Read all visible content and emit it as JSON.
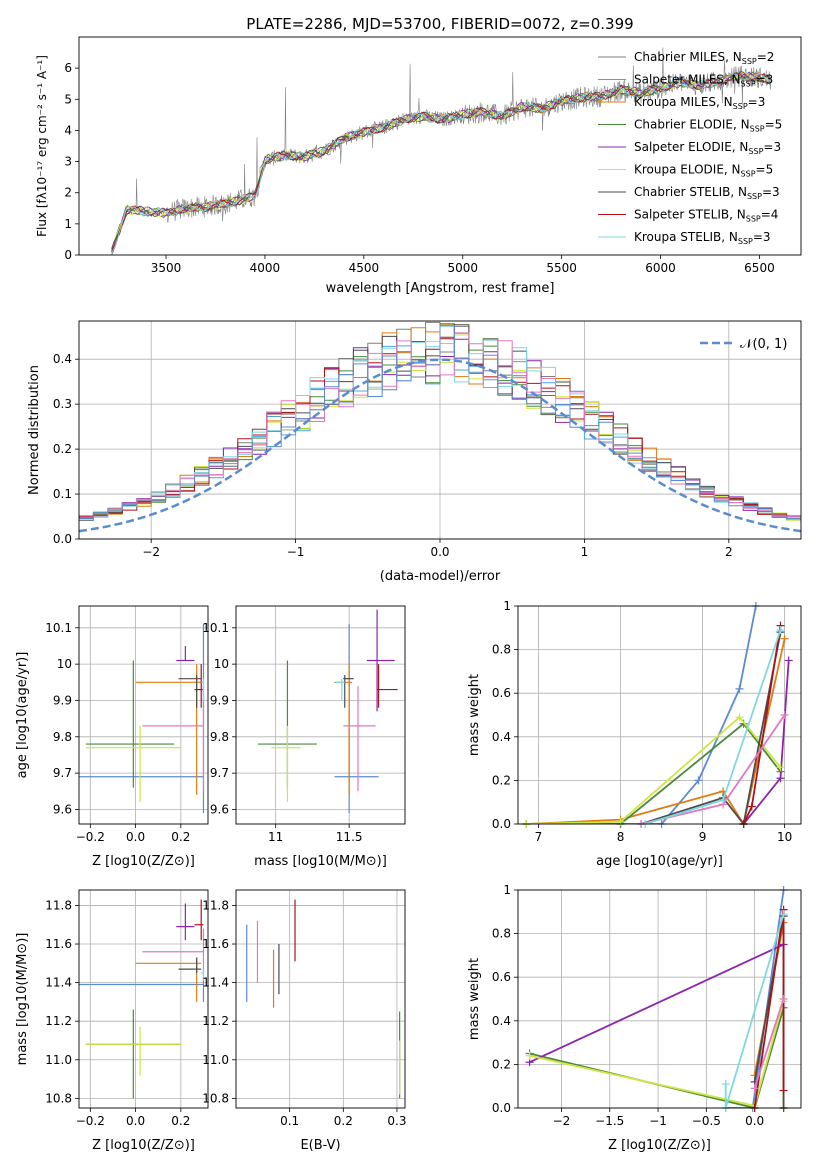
{
  "figure_title": "PLATE=2286, MJD=53700, FIBERID=0072, z=0.399",
  "colors": {
    "Chabrier MILES": "#7f7f7f",
    "Salpeter MILES": "#4aa5e0",
    "Kroupa MILES": "#e07b10",
    "Chabrier ELODIE": "#4a8a3a",
    "Salpeter ELODIE": "#8e24aa",
    "Kroupa ELODIE": "#cde640",
    "Chabrier STELIB": "#4d4d4d",
    "Salpeter STELIB": "#b0101a",
    "Kroupa STELIB": "#7fd8e0",
    "normal": "#5b8bd0",
    "pink": "#e377c2",
    "lightgreen": "#80c040"
  },
  "chart_data": [
    {
      "id": "spectrum",
      "type": "line",
      "xlabel": "wavelength [Angstrom, rest frame]",
      "ylabel": "Flux [f$_\\lambda$10$^{-17}$ erg cm$^{-2}$ s$^{-1}$ A$^{-1}$]",
      "ylabel_display": "Flux [fλ10⁻¹⁷ erg cm⁻² s⁻¹ A⁻¹]",
      "xlim": [
        3060,
        6710
      ],
      "ylim": [
        0,
        7.0
      ],
      "xticks": [
        3500,
        4000,
        4500,
        5000,
        5500,
        6000,
        6500
      ],
      "yticks": [
        0,
        1,
        2,
        3,
        4,
        5,
        6
      ],
      "continuum": {
        "x": [
          3220,
          3300,
          3400,
          3500,
          3600,
          3700,
          3800,
          3900,
          3950,
          4000,
          4100,
          4200,
          4300,
          4400,
          4500,
          4600,
          4700,
          4800,
          4900,
          5000,
          5100,
          5200,
          5300,
          5400,
          5500,
          5600,
          5700,
          5800,
          5900,
          6000,
          6100,
          6200,
          6300,
          6400,
          6500,
          6560
        ],
        "y": [
          0.0,
          1.45,
          1.4,
          1.35,
          1.5,
          1.55,
          1.65,
          1.8,
          1.9,
          3.05,
          3.2,
          3.15,
          3.35,
          3.75,
          3.95,
          4.1,
          4.35,
          4.45,
          4.35,
          4.5,
          4.6,
          4.45,
          4.75,
          4.7,
          4.95,
          5.05,
          5.1,
          5.3,
          5.2,
          5.35,
          5.55,
          5.45,
          5.6,
          5.75,
          5.7,
          5.6
        ]
      },
      "legend": [
        {
          "label": "Chabrier MILES",
          "nssp": "2"
        },
        {
          "label": "Salpeter MILES",
          "nssp": "3"
        },
        {
          "label": "Kroupa MILES",
          "nssp": "3"
        },
        {
          "label": "Chabrier ELODIE",
          "nssp": "5"
        },
        {
          "label": "Salpeter ELODIE",
          "nssp": "3"
        },
        {
          "label": "Kroupa ELODIE",
          "nssp": "5"
        },
        {
          "label": "Chabrier STELIB",
          "nssp": "3"
        },
        {
          "label": "Salpeter STELIB",
          "nssp": "4"
        },
        {
          "label": "Kroupa STELIB",
          "nssp": "3"
        }
      ],
      "legend_placement": "upper-right"
    },
    {
      "id": "residuals",
      "type": "bar",
      "xlabel": "(data-model)/error",
      "ylabel": "Normed distribution",
      "xlim": [
        -2.5,
        2.5
      ],
      "ylim": [
        0,
        0.485
      ],
      "xticks": [
        -2,
        -1,
        0,
        1,
        2
      ],
      "yticks": [
        0.0,
        0.1,
        0.2,
        0.3,
        0.4
      ],
      "bin_width": 0.1,
      "legend": "N(0,1)",
      "legend_placement": "upper-right",
      "grid": true
    },
    {
      "id": "z_age",
      "type": "scatter",
      "xlabel": "Z [log10(Z/Z⊙)]",
      "ylabel": "age  [log10(age/yr)]",
      "xlim": [
        -0.25,
        0.32
      ],
      "ylim": [
        9.56,
        10.16
      ],
      "xticks": [
        -0.2,
        0.0,
        0.2
      ],
      "yticks": [
        9.6,
        9.7,
        9.8,
        9.9,
        10.0,
        10.1
      ],
      "points": [
        {
          "c": "#5b8bd0",
          "x": 0.3,
          "y": 9.69,
          "xerr": [
            0.55,
            0.0
          ],
          "yerr": [
            0.1,
            0.42
          ]
        },
        {
          "c": "#e07b10",
          "x": 0.27,
          "y": 9.95,
          "xerr": [
            0.27,
            0.02
          ],
          "yerr": [
            0.31,
            0.05
          ]
        },
        {
          "c": "#4a8a3a",
          "x": -0.01,
          "y": 9.78,
          "xerr": [
            0.21,
            0.18
          ],
          "yerr": [
            0.12,
            0.23
          ]
        },
        {
          "c": "#8e24aa",
          "x": 0.22,
          "y": 10.01,
          "xerr": [
            0.04,
            0.04
          ],
          "yerr": [
            0.0,
            0.04
          ]
        },
        {
          "c": "#cde640",
          "x": 0.02,
          "y": 9.77,
          "xerr": [
            0.24,
            0.18
          ],
          "yerr": [
            0.15,
            0.06
          ]
        },
        {
          "c": "#4d4d4d",
          "x": 0.27,
          "y": 9.96,
          "xerr": [
            0.08,
            0.02
          ],
          "yerr": [
            0.08,
            0.01
          ]
        },
        {
          "c": "#b0101a",
          "x": 0.29,
          "y": 9.93,
          "xerr": [
            0.03,
            0.01
          ],
          "yerr": [
            0.05,
            0.07
          ]
        },
        {
          "c": "#e377c2",
          "x": 0.3,
          "y": 9.83,
          "xerr": [
            0.27,
            0.0
          ],
          "yerr": [
            0.18,
            0.11
          ]
        },
        {
          "c": "#7fd8e0",
          "x": 0.3,
          "y": 9.95,
          "xerr": [
            0.01,
            0.0
          ],
          "yerr": [
            0.05,
            0.01
          ]
        }
      ]
    },
    {
      "id": "mass_age",
      "type": "scatter",
      "xlabel": "mass [log10(M/M⊙)]",
      "ylabel": "",
      "xlim": [
        10.73,
        11.88
      ],
      "ylim": [
        9.56,
        10.16
      ],
      "xticks": [
        11.0,
        11.5
      ],
      "yticks": [
        9.6,
        9.7,
        9.8,
        9.9,
        10.0,
        10.1
      ],
      "points": [
        {
          "c": "#5b8bd0",
          "x": 11.5,
          "y": 9.69,
          "xerr": [
            0.1,
            0.2
          ],
          "yerr": [
            0.1,
            0.42
          ]
        },
        {
          "c": "#e07b10",
          "x": 11.5,
          "y": 9.95,
          "xerr": [
            0.1,
            0.02
          ],
          "yerr": [
            0.31,
            0.05
          ]
        },
        {
          "c": "#4a8a3a",
          "x": 11.08,
          "y": 9.78,
          "xerr": [
            0.2,
            0.2
          ],
          "yerr": [
            0.12,
            0.23
          ]
        },
        {
          "c": "#8e24aa",
          "x": 11.69,
          "y": 10.01,
          "xerr": [
            0.07,
            0.12
          ],
          "yerr": [
            0.14,
            0.14
          ]
        },
        {
          "c": "#cde640",
          "x": 11.08,
          "y": 9.77,
          "xerr": [
            0.11,
            0.09
          ],
          "yerr": [
            0.15,
            0.06
          ]
        },
        {
          "c": "#4d4d4d",
          "x": 11.47,
          "y": 9.96,
          "xerr": [
            0.01,
            0.06
          ],
          "yerr": [
            0.08,
            0.01
          ]
        },
        {
          "c": "#b0101a",
          "x": 11.7,
          "y": 9.93,
          "xerr": [
            0.01,
            0.13
          ],
          "yerr": [
            0.05,
            0.07
          ]
        },
        {
          "c": "#e377c2",
          "x": 11.56,
          "y": 9.83,
          "xerr": [
            0.1,
            0.12
          ],
          "yerr": [
            0.18,
            0.11
          ]
        },
        {
          "c": "#7fd8e0",
          "x": 11.45,
          "y": 9.95,
          "xerr": [
            0.04,
            0.02
          ],
          "yerr": [
            0.05,
            0.01
          ]
        }
      ]
    },
    {
      "id": "age_weight",
      "type": "line",
      "xlabel": "age  [log10(age/yr)]",
      "ylabel": "mass weight",
      "xlim": [
        6.75,
        10.2
      ],
      "ylim": [
        0.0,
        1.0
      ],
      "xticks": [
        7,
        8,
        9,
        10
      ],
      "yticks": [
        0.0,
        0.2,
        0.4,
        0.6,
        0.8,
        1.0
      ],
      "series": [
        {
          "c": "#5b8bd0",
          "x": [
            6.85,
            8.0,
            8.5,
            8.95,
            9.45,
            9.65
          ],
          "y": [
            0.0,
            0.0,
            0.0,
            0.2,
            0.62,
            1.0
          ]
        },
        {
          "c": "#e07b10",
          "x": [
            6.85,
            8.0,
            9.25,
            9.5,
            10.0
          ],
          "y": [
            0.0,
            0.02,
            0.15,
            0.0,
            0.85
          ]
        },
        {
          "c": "#4a8a3a",
          "x": [
            6.85,
            8.0,
            9.5,
            9.95
          ],
          "y": [
            0.0,
            0.0,
            0.46,
            0.24
          ]
        },
        {
          "c": "#8e24aa",
          "x": [
            9.5,
            9.95,
            10.05
          ],
          "y": [
            0.0,
            0.21,
            0.75
          ]
        },
        {
          "c": "#cde640",
          "x": [
            6.85,
            8.0,
            9.45,
            9.95
          ],
          "y": [
            0.0,
            0.01,
            0.49,
            0.26
          ]
        },
        {
          "c": "#4d4d4d",
          "x": [
            8.25,
            9.25,
            9.5,
            9.95
          ],
          "y": [
            0.0,
            0.12,
            0.0,
            0.88
          ]
        },
        {
          "c": "#b0101a",
          "x": [
            9.5,
            9.6,
            9.95
          ],
          "y": [
            0.0,
            0.08,
            0.91
          ]
        },
        {
          "c": "#e377c2",
          "x": [
            8.25,
            9.25,
            10.0
          ],
          "y": [
            0.0,
            0.09,
            0.5
          ]
        },
        {
          "c": "#7fd8e0",
          "x": [
            8.3,
            9.25,
            9.95
          ],
          "y": [
            0.0,
            0.11,
            0.89
          ]
        }
      ]
    },
    {
      "id": "z_mass",
      "type": "scatter",
      "xlabel": "Z [log10(Z/Z⊙)]",
      "ylabel": "mass [log10(M/M⊙)]",
      "xlim": [
        -0.25,
        0.32
      ],
      "ylim": [
        10.75,
        11.88
      ],
      "xticks": [
        -0.2,
        0.0,
        0.2
      ],
      "yticks": [
        10.8,
        11.0,
        11.2,
        11.4,
        11.6,
        11.8
      ],
      "points": [
        {
          "c": "#5b8bd0",
          "x": 0.3,
          "y": 11.39,
          "xerr": [
            0.55,
            0.0
          ],
          "yerr": [
            0.09,
            0.08
          ]
        },
        {
          "c": "#e07b10",
          "x": 0.27,
          "y": 11.5,
          "xerr": [
            0.27,
            0.02
          ],
          "yerr": [
            0.2,
            0.03
          ]
        },
        {
          "c": "#4a8a3a",
          "x": -0.01,
          "y": 11.08,
          "xerr": [
            0.21,
            0.21
          ],
          "yerr": [
            0.28,
            0.18
          ]
        },
        {
          "c": "#8e24aa",
          "x": 0.22,
          "y": 11.69,
          "xerr": [
            0.04,
            0.04
          ],
          "yerr": [
            0.07,
            0.12
          ]
        },
        {
          "c": "#cde640",
          "x": 0.02,
          "y": 11.08,
          "xerr": [
            0.24,
            0.18
          ],
          "yerr": [
            0.16,
            0.09
          ]
        },
        {
          "c": "#4d4d4d",
          "x": 0.27,
          "y": 11.47,
          "xerr": [
            0.08,
            0.02
          ],
          "yerr": [
            0.02,
            0.06
          ]
        },
        {
          "c": "#b0101a",
          "x": 0.29,
          "y": 11.7,
          "xerr": [
            0.03,
            0.01
          ],
          "yerr": [
            0.08,
            0.13
          ]
        },
        {
          "c": "#e377c2",
          "x": 0.3,
          "y": 11.56,
          "xerr": [
            0.27,
            0.0
          ],
          "yerr": [
            0.1,
            0.12
          ]
        },
        {
          "c": "#7fd8e0",
          "x": 0.3,
          "y": 11.45,
          "xerr": [
            0.01,
            0.0
          ],
          "yerr": [
            0.04,
            0.02
          ]
        }
      ]
    },
    {
      "id": "ebv_mass",
      "type": "scatter",
      "xlabel": "E(B-V)",
      "ylabel": "",
      "xlim": [
        0.0,
        0.315
      ],
      "ylim": [
        10.75,
        11.88
      ],
      "xticks": [
        0.1,
        0.2,
        0.3
      ],
      "yticks": [
        10.8,
        11.0,
        11.2,
        11.4,
        11.6,
        11.8
      ],
      "points": [
        {
          "c": "#5b8bd0",
          "x": 0.02,
          "y": 11.5,
          "xerr": [
            0,
            0
          ],
          "yerr": [
            0.2,
            0.2
          ]
        },
        {
          "c": "#e377c2",
          "x": 0.04,
          "y": 11.55,
          "xerr": [
            0,
            0
          ],
          "yerr": [
            0.15,
            0.17
          ]
        },
        {
          "c": "#e07b10",
          "x": 0.07,
          "y": 11.47,
          "xerr": [
            0,
            0
          ],
          "yerr": [
            0.2,
            0.1
          ]
        },
        {
          "c": "#4d4d4d",
          "x": 0.08,
          "y": 11.5,
          "xerr": [
            0,
            0
          ],
          "yerr": [
            0.16,
            0.1
          ]
        },
        {
          "c": "#b0101a",
          "x": 0.11,
          "y": 11.67,
          "xerr": [
            0,
            0
          ],
          "yerr": [
            0.16,
            0.16
          ]
        },
        {
          "c": "#4a8a3a",
          "x": 0.305,
          "y": 11.05,
          "xerr": [
            0,
            0
          ],
          "yerr": [
            0.25,
            0.2
          ]
        },
        {
          "c": "#cde640",
          "x": 0.305,
          "y": 11.0,
          "xerr": [
            0,
            0
          ],
          "yerr": [
            0.18,
            0.1
          ]
        }
      ]
    },
    {
      "id": "z_weight",
      "type": "line",
      "xlabel": "Z [log10(Z/Z⊙)]",
      "ylabel": "mass weight",
      "xlim": [
        -2.45,
        0.48
      ],
      "ylim": [
        0.0,
        1.0
      ],
      "xticks": [
        -2.0,
        -1.5,
        -1.0,
        -0.5,
        0.0
      ],
      "yticks": [
        0.0,
        0.2,
        0.4,
        0.6,
        0.8,
        1.0
      ],
      "series": [
        {
          "c": "#5b8bd0",
          "x": [
            -0.3,
            -0.02,
            0.3
          ],
          "y": [
            0.0,
            0.0,
            1.0
          ]
        },
        {
          "c": "#e07b10",
          "x": [
            0.0,
            0.3,
            0.3
          ],
          "y": [
            0.15,
            0.85,
            0.0
          ]
        },
        {
          "c": "#4a8a3a",
          "x": [
            -2.33,
            0.0,
            0.3,
            0.3
          ],
          "y": [
            0.25,
            0.0,
            0.46,
            0.0
          ]
        },
        {
          "c": "#8e24aa",
          "x": [
            -2.33,
            0.3
          ],
          "y": [
            0.21,
            0.75
          ]
        },
        {
          "c": "#cde640",
          "x": [
            -2.33,
            0.0,
            0.3,
            0.3
          ],
          "y": [
            0.24,
            0.01,
            0.49,
            0.0
          ]
        },
        {
          "c": "#4d4d4d",
          "x": [
            0.0,
            0.3,
            0.3
          ],
          "y": [
            0.12,
            0.88,
            0.0
          ]
        },
        {
          "c": "#b0101a",
          "x": [
            0.0,
            0.3,
            0.3
          ],
          "y": [
            0.0,
            0.91,
            0.08
          ]
        },
        {
          "c": "#7fd8e0",
          "x": [
            -0.3,
            -0.3,
            0.3
          ],
          "y": [
            0.11,
            0.0,
            0.89
          ]
        },
        {
          "c": "#e377c2",
          "x": [
            0.0,
            0.3
          ],
          "y": [
            0.09,
            0.5
          ]
        }
      ]
    }
  ]
}
